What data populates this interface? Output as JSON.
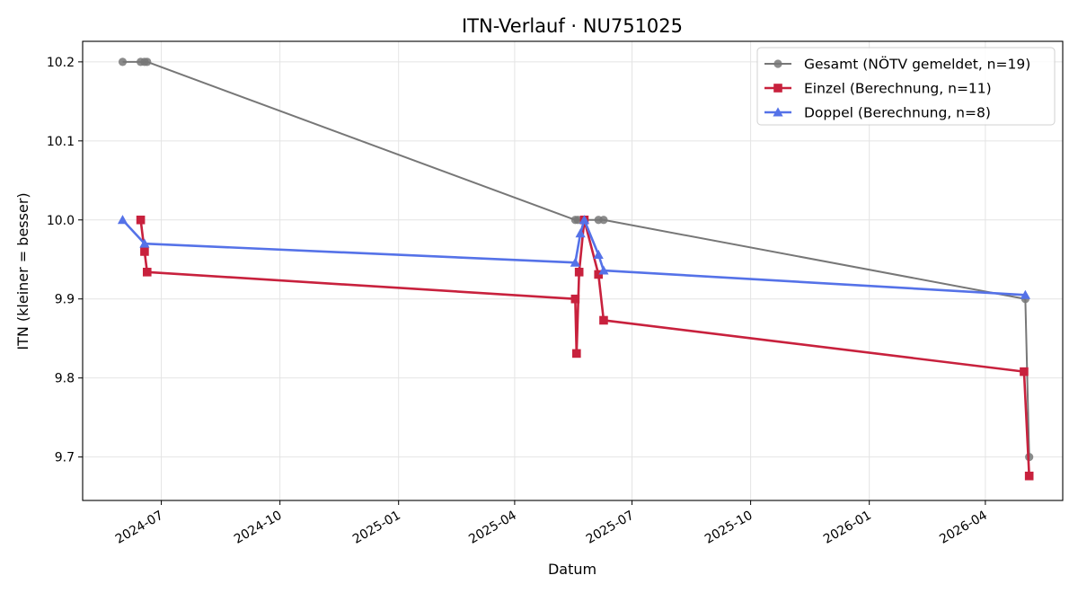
{
  "chart_data": {
    "type": "line",
    "title": "ITN-Verlauf · NU751025",
    "xlabel": "Datum",
    "ylabel": "ITN  (kleiner = besser)",
    "xlim": [
      "2024-05-01",
      "2026-05-31"
    ],
    "ylim": [
      9.645,
      10.226
    ],
    "x_ticks": [
      "2024-07",
      "2024-10",
      "2025-01",
      "2025-04",
      "2025-07",
      "2025-10",
      "2026-01",
      "2026-04"
    ],
    "y_ticks": [
      9.7,
      9.8,
      9.9,
      10.0,
      10.1,
      10.2
    ],
    "y_tick_labels": [
      "9.7",
      "9.8",
      "9.9",
      "10.0",
      "10.1",
      "10.2"
    ],
    "grid": true,
    "legend_position": "top-right",
    "series": [
      {
        "name": "Gesamt (NÖTV gemeldet, n=19)",
        "color": "#777777",
        "marker": "circle",
        "points": [
          {
            "x": "2024-06-01",
            "y": 10.2
          },
          {
            "x": "2024-06-15",
            "y": 10.2
          },
          {
            "x": "2024-06-18",
            "y": 10.2
          },
          {
            "x": "2024-06-20",
            "y": 10.2
          },
          {
            "x": "2025-05-18",
            "y": 10.0
          },
          {
            "x": "2025-05-20",
            "y": 10.0
          },
          {
            "x": "2025-05-25",
            "y": 10.0
          },
          {
            "x": "2025-06-05",
            "y": 10.0
          },
          {
            "x": "2025-06-09",
            "y": 10.0
          },
          {
            "x": "2026-05-02",
            "y": 9.9
          },
          {
            "x": "2026-05-05",
            "y": 9.7
          }
        ]
      },
      {
        "name": "Einzel (Berechnung, n=11)",
        "color": "#c8213d",
        "marker": "square",
        "points": [
          {
            "x": "2024-06-15",
            "y": 10.0
          },
          {
            "x": "2024-06-18",
            "y": 9.96
          },
          {
            "x": "2024-06-20",
            "y": 9.934
          },
          {
            "x": "2025-05-18",
            "y": 9.9
          },
          {
            "x": "2025-05-19",
            "y": 9.831
          },
          {
            "x": "2025-05-21",
            "y": 9.934
          },
          {
            "x": "2025-05-25",
            "y": 10.0
          },
          {
            "x": "2025-06-05",
            "y": 9.931
          },
          {
            "x": "2025-06-09",
            "y": 9.873
          },
          {
            "x": "2026-05-01",
            "y": 9.808
          },
          {
            "x": "2026-05-05",
            "y": 9.676
          }
        ]
      },
      {
        "name": "Doppel (Berechnung, n=8)",
        "color": "#5572e8",
        "marker": "triangle",
        "points": [
          {
            "x": "2024-06-01",
            "y": 10.0
          },
          {
            "x": "2024-06-18",
            "y": 9.97
          },
          {
            "x": "2025-05-18",
            "y": 9.946
          },
          {
            "x": "2025-05-22",
            "y": 9.983
          },
          {
            "x": "2025-05-25",
            "y": 10.0
          },
          {
            "x": "2025-06-05",
            "y": 9.956
          },
          {
            "x": "2025-06-09",
            "y": 9.936
          },
          {
            "x": "2026-05-02",
            "y": 9.905
          }
        ]
      }
    ]
  }
}
